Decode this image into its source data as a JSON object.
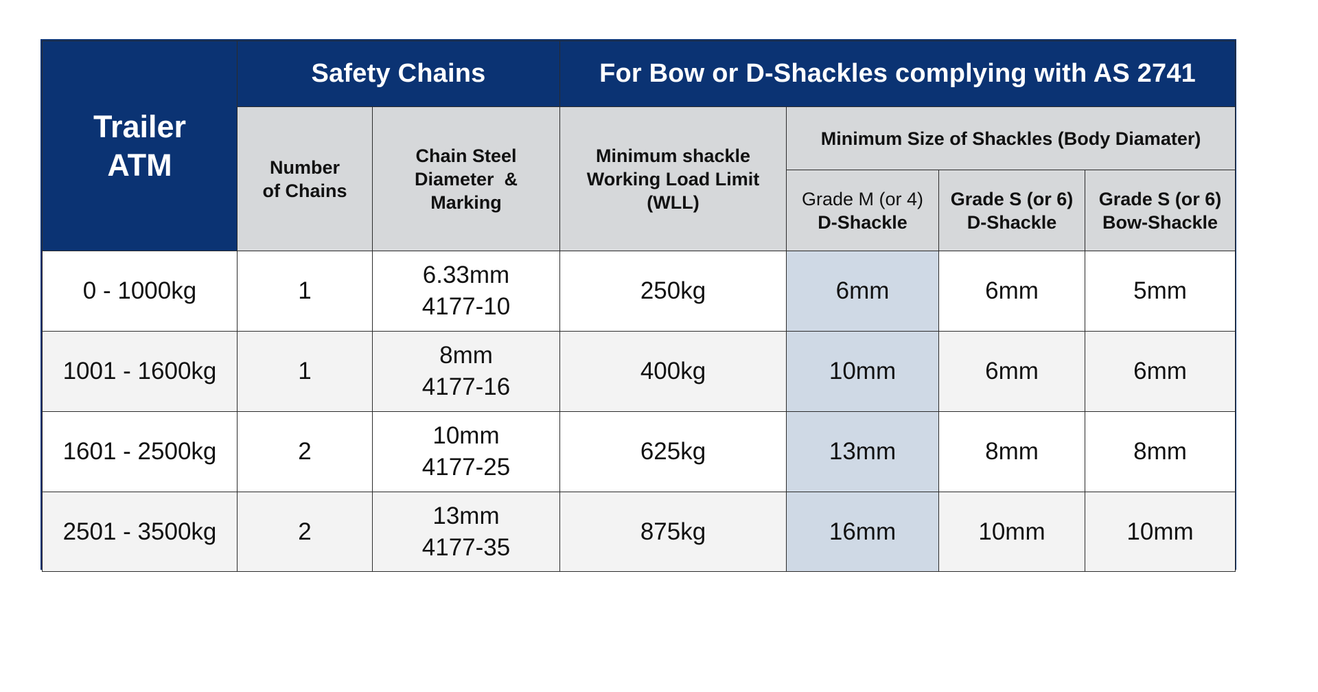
{
  "header": {
    "atm_line1": "Trailer",
    "atm_line2": "ATM",
    "safety_chains": "Safety Chains",
    "shackles_group": "For Bow or D-Shackles complying with AS 2741",
    "num_chains_line1": "Number",
    "num_chains_line2": "of Chains",
    "chain_steel_line1": "Chain Steel",
    "chain_steel_line2": "Diameter  &",
    "chain_steel_line3": "Marking",
    "wll_line1": "Minimum shackle",
    "wll_line2": "Working Load Limit",
    "wll_line3": "(WLL)",
    "min_size": "Minimum Size of Shackles (Body Diamater)",
    "grade_m_line1": "Grade M (or 4)",
    "grade_m_line2": "D-Shackle",
    "grade_s_d_line1": "Grade S (or 6)",
    "grade_s_d_line2": "D-Shackle",
    "grade_s_bow_line1": "Grade S (or 6)",
    "grade_s_bow_line2": "Bow-Shackle"
  },
  "rows": [
    {
      "atm": "0 - 1000kg",
      "chains": "1",
      "steel_dia": "6.33mm",
      "marking": "4177-10",
      "wll": "250kg",
      "grade_m": "6mm",
      "grade_s_d": "6mm",
      "grade_s_bow": "5mm"
    },
    {
      "atm": "1001 - 1600kg",
      "chains": "1",
      "steel_dia": "8mm",
      "marking": "4177-16",
      "wll": "400kg",
      "grade_m": "10mm",
      "grade_s_d": "6mm",
      "grade_s_bow": "6mm"
    },
    {
      "atm": "1601 - 2500kg",
      "chains": "2",
      "steel_dia": "10mm",
      "marking": "4177-25",
      "wll": "625kg",
      "grade_m": "13mm",
      "grade_s_d": "8mm",
      "grade_s_bow": "8mm"
    },
    {
      "atm": "2501 - 3500kg",
      "chains": "2",
      "steel_dia": "13mm",
      "marking": "4177-35",
      "wll": "875kg",
      "grade_m": "16mm",
      "grade_s_d": "10mm",
      "grade_s_bow": "10mm"
    }
  ],
  "colors": {
    "navy": "#0b3373",
    "header_grey": "#d6d8da",
    "highlight_column": "#cfd9e5",
    "alt_row": "#f3f3f3"
  }
}
